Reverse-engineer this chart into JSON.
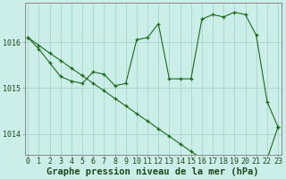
{
  "title": "Graphe pression niveau de la mer (hPa)",
  "bg_color": "#cceee8",
  "line_color": "#1a6b1a",
  "grid_color": "#aad8d0",
  "axis_label_color": "#1a4a1a",
  "x_ticks": [
    0,
    1,
    2,
    3,
    4,
    5,
    6,
    7,
    8,
    9,
    10,
    11,
    12,
    13,
    14,
    15,
    16,
    17,
    18,
    19,
    20,
    21,
    22,
    23
  ],
  "y_ticks": [
    1014,
    1015,
    1016
  ],
  "ylim": [
    1013.55,
    1016.85
  ],
  "xlim": [
    -0.3,
    23.3
  ],
  "series1_x": [
    0,
    1,
    2,
    3,
    4,
    5,
    6,
    7,
    8,
    9,
    10,
    11,
    12,
    13,
    14,
    15,
    16,
    17,
    18,
    19,
    20,
    21,
    22,
    23
  ],
  "series1_y": [
    1016.1,
    1015.93,
    1015.76,
    1015.6,
    1015.43,
    1015.27,
    1015.1,
    1014.94,
    1014.77,
    1014.61,
    1014.44,
    1014.28,
    1014.11,
    1013.95,
    1013.78,
    1013.62,
    1013.45,
    1013.45,
    1013.45,
    1013.45,
    1013.45,
    1013.45,
    1013.45,
    1014.15
  ],
  "series2_x": [
    0,
    1,
    2,
    3,
    4,
    5,
    6,
    7,
    8,
    9,
    10,
    11,
    12,
    13,
    14,
    15,
    16,
    17,
    18,
    19,
    20,
    21,
    22,
    23
  ],
  "series2_y": [
    1016.1,
    1015.85,
    1015.55,
    1015.25,
    1015.15,
    1015.1,
    1015.35,
    1015.3,
    1015.05,
    1015.1,
    1016.05,
    1016.1,
    1016.4,
    1015.2,
    1015.2,
    1015.2,
    1016.5,
    1016.6,
    1016.55,
    1016.65,
    1016.6,
    1016.15,
    1014.7,
    1014.15
  ],
  "title_fontsize": 7.5,
  "tick_fontsize": 6.0
}
